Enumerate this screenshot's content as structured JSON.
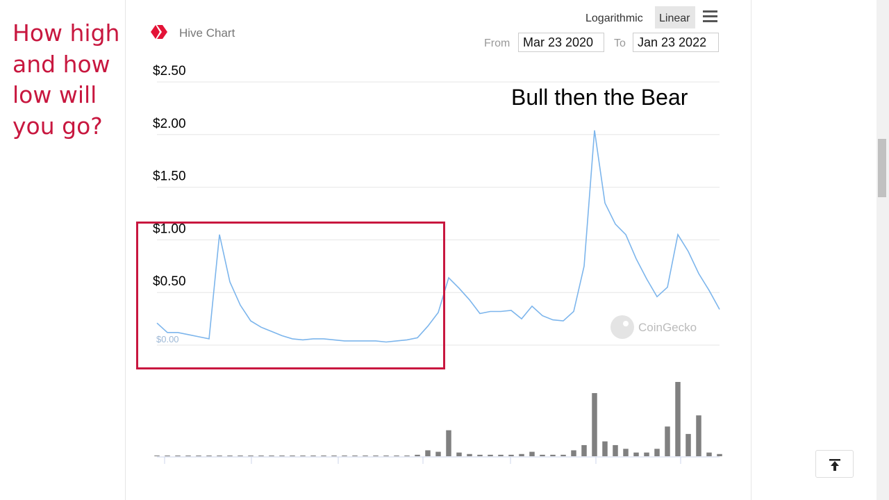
{
  "sidebar_note": "How high and how low will you go?",
  "header": {
    "title": "Hive Chart",
    "scale_options": [
      "Logarithmic",
      "Linear"
    ],
    "from_label": "From",
    "from_date": "Mar 23 2020",
    "to_label": "To",
    "to_date": "Jan 23 2022"
  },
  "annotation": "Bull then the Bear",
  "watermark": "CoinGecko",
  "chart_data": {
    "type": "line",
    "color": "#7cb5ec",
    "values": [
      0.21,
      0.12,
      0.12,
      0.1,
      0.08,
      0.06,
      1.05,
      0.6,
      0.38,
      0.23,
      0.17,
      0.13,
      0.09,
      0.06,
      0.05,
      0.06,
      0.06,
      0.05,
      0.04,
      0.04,
      0.04,
      0.04,
      0.03,
      0.04,
      0.05,
      0.07,
      0.18,
      0.31,
      0.64,
      0.54,
      0.43,
      0.3,
      0.32,
      0.32,
      0.33,
      0.25,
      0.37,
      0.28,
      0.24,
      0.23,
      0.32,
      0.75,
      2.04,
      1.35,
      1.15,
      1.05,
      0.82,
      0.63,
      0.46,
      0.55,
      1.05,
      0.89,
      0.68,
      0.52,
      0.34
    ],
    "volume": {
      "color": "#808080",
      "values": [
        1,
        1,
        1,
        1,
        1,
        1,
        1,
        1,
        1,
        1,
        1,
        1,
        1,
        1,
        1,
        1,
        1,
        1,
        1,
        1,
        1,
        1,
        1,
        1,
        1,
        2,
        8,
        6,
        35,
        5,
        3,
        2,
        2,
        2,
        2,
        3,
        6,
        2,
        2,
        2,
        8,
        15,
        85,
        20,
        15,
        10,
        5,
        5,
        10,
        40,
        100,
        30,
        55,
        5,
        3
      ]
    },
    "ylim": [
      0,
      2.5
    ],
    "yticks": [
      {
        "value": 0,
        "label": "$0.00"
      },
      {
        "value": 0.5,
        "label": "$0.50"
      },
      {
        "value": 1,
        "label": "$1.00"
      },
      {
        "value": 1.5,
        "label": "$1.50"
      },
      {
        "value": 2,
        "label": "$2.00"
      },
      {
        "value": 2.5,
        "label": "$2.50"
      }
    ],
    "grid": true
  }
}
